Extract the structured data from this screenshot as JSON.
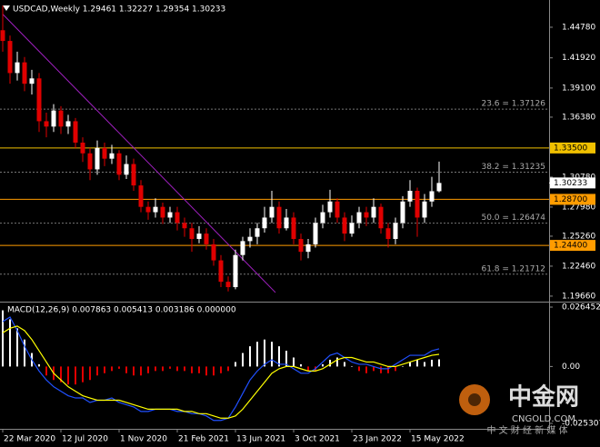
{
  "chart_data": [
    {
      "type": "candlestick",
      "title": "USDCAD,Weekly 1.29461 1.32227 1.29354 1.30233",
      "categories": [
        "22 Mar 2020",
        null,
        null,
        null,
        null,
        null,
        null,
        null,
        "12 Jul 2020",
        null,
        null,
        null,
        null,
        null,
        null,
        null,
        "1 Nov 2020",
        null,
        null,
        null,
        null,
        null,
        null,
        null,
        "21 Feb 2021",
        null,
        null,
        null,
        null,
        null,
        null,
        null,
        "13 Jun 2021",
        null,
        null,
        null,
        null,
        null,
        null,
        null,
        "3 Oct 2021",
        null,
        null,
        null,
        null,
        null,
        null,
        null,
        "23 Jan 2022",
        null,
        null,
        null,
        null,
        null,
        null,
        null,
        "15 May 2022",
        null,
        null,
        null,
        null
      ],
      "open": [
        1.445,
        1.435,
        1.405,
        1.415,
        1.395,
        1.4,
        1.36,
        1.355,
        1.37,
        1.355,
        1.36,
        1.34,
        1.33,
        1.315,
        1.335,
        1.325,
        1.33,
        1.31,
        1.32,
        1.3,
        1.28,
        1.275,
        1.28,
        1.27,
        1.275,
        1.265,
        1.26,
        1.25,
        1.255,
        1.245,
        1.23,
        1.21,
        1.205,
        1.235,
        1.248,
        1.252,
        1.26,
        1.27,
        1.28,
        1.26,
        1.27,
        1.25,
        1.238,
        1.245,
        1.265,
        1.275,
        1.285,
        1.27,
        1.255,
        1.265,
        1.275,
        1.27,
        1.28,
        1.26,
        1.25,
        1.265,
        1.285,
        1.295,
        1.27,
        1.285,
        1.29461
      ],
      "high": [
        1.468,
        1.44,
        1.425,
        1.42,
        1.408,
        1.405,
        1.368,
        1.376,
        1.374,
        1.366,
        1.363,
        1.345,
        1.335,
        1.342,
        1.34,
        1.338,
        1.333,
        1.328,
        1.325,
        1.305,
        1.285,
        1.288,
        1.284,
        1.28,
        1.28,
        1.27,
        1.265,
        1.262,
        1.26,
        1.25,
        1.235,
        1.215,
        1.24,
        1.252,
        1.26,
        1.265,
        1.28,
        1.295,
        1.285,
        1.278,
        1.275,
        1.255,
        1.25,
        1.27,
        1.282,
        1.296,
        1.288,
        1.275,
        1.272,
        1.28,
        1.28,
        1.288,
        1.283,
        1.265,
        1.27,
        1.29,
        1.305,
        1.298,
        1.292,
        1.308,
        1.32227
      ],
      "low": [
        1.425,
        1.395,
        1.398,
        1.388,
        1.385,
        1.35,
        1.345,
        1.35,
        1.348,
        1.348,
        1.335,
        1.322,
        1.305,
        1.31,
        1.318,
        1.32,
        1.305,
        1.306,
        1.295,
        1.275,
        1.268,
        1.27,
        1.264,
        1.265,
        1.258,
        1.252,
        1.238,
        1.246,
        1.24,
        1.225,
        1.205,
        1.201,
        1.203,
        1.23,
        1.242,
        1.245,
        1.256,
        1.265,
        1.255,
        1.258,
        1.245,
        1.23,
        1.232,
        1.242,
        1.26,
        1.27,
        1.265,
        1.248,
        1.252,
        1.26,
        1.262,
        1.265,
        1.255,
        1.242,
        1.245,
        1.26,
        1.28,
        1.252,
        1.265,
        1.28,
        1.29354
      ],
      "close": [
        1.435,
        1.405,
        1.415,
        1.395,
        1.4,
        1.36,
        1.355,
        1.37,
        1.355,
        1.36,
        1.34,
        1.33,
        1.315,
        1.335,
        1.325,
        1.33,
        1.31,
        1.32,
        1.3,
        1.28,
        1.275,
        1.28,
        1.27,
        1.275,
        1.265,
        1.26,
        1.25,
        1.255,
        1.245,
        1.23,
        1.21,
        1.205,
        1.235,
        1.248,
        1.252,
        1.26,
        1.27,
        1.28,
        1.26,
        1.27,
        1.25,
        1.238,
        1.245,
        1.265,
        1.275,
        1.285,
        1.27,
        1.255,
        1.265,
        1.275,
        1.27,
        1.28,
        1.26,
        1.25,
        1.265,
        1.285,
        1.295,
        1.27,
        1.285,
        1.2946,
        1.30233
      ],
      "up_color": "#ffffff",
      "down_color": "#e00000",
      "ylim": [
        1.1923,
        1.4707
      ],
      "yticks": [
        {
          "value": 1.4478,
          "label": "1.44780"
        },
        {
          "value": 1.4192,
          "label": "1.41920"
        },
        {
          "value": 1.391,
          "label": "1.39100"
        },
        {
          "value": 1.3638,
          "label": "1.36380"
        },
        {
          "value": 1.3078,
          "label": "1.30780"
        },
        {
          "value": 1.2798,
          "label": "1.27980"
        },
        {
          "value": 1.2526,
          "label": "1.25260"
        },
        {
          "value": 1.2246,
          "label": "1.22460"
        },
        {
          "value": 1.1966,
          "label": "1.19660"
        }
      ],
      "levels": [
        {
          "value": 1.335,
          "label": "1.33500",
          "color": "#f0c000"
        },
        {
          "value": 1.287,
          "label": "1.28700",
          "color": "#ff9c00"
        },
        {
          "value": 1.244,
          "label": "1.24400",
          "color": "#ff9c00"
        }
      ],
      "current_price": 1.30233,
      "fibonacci": [
        {
          "value": 1.37126,
          "label": "23.6 = 1.37126"
        },
        {
          "value": 1.31235,
          "label": "38.2 = 1.31235"
        },
        {
          "value": 1.26474,
          "label": "50.0 = 1.26474"
        },
        {
          "value": 1.21712,
          "label": "61.8 = 1.21712"
        }
      ],
      "trendline": {
        "color": "#a020c0",
        "points": [
          [
            0,
            1.46
          ],
          [
            37.5,
            1.2
          ]
        ]
      }
    },
    {
      "type": "macd",
      "title": "MACD(12,26,9) 0.007863 0.005413 0.003186 0.000000",
      "histogram": {
        "color": "#ffffff",
        "down_color": "#e00000",
        "values": [
          0.025,
          0.021,
          0.017,
          0.012,
          0.006,
          0.001,
          -0.004,
          -0.006,
          -0.007,
          -0.008,
          -0.008,
          -0.007,
          -0.006,
          -0.004,
          -0.003,
          -0.002,
          -0.001,
          -0.003,
          -0.004,
          -0.004,
          -0.003,
          -0.002,
          -0.002,
          -0.001,
          -0.002,
          -0.002,
          -0.003,
          -0.003,
          -0.004,
          -0.004,
          -0.003,
          -0.002,
          0.002,
          0.006,
          0.009,
          0.011,
          0.012,
          0.011,
          0.009,
          0.007,
          0.004,
          0.001,
          -0.002,
          -0.002,
          0.001,
          0.003,
          0.004,
          0.002,
          0.0,
          -0.002,
          -0.003,
          -0.002,
          -0.003,
          -0.003,
          -0.002,
          0.0,
          0.002,
          0.003,
          0.002,
          0.003,
          0.003186
        ]
      },
      "macd": {
        "color": "#2050ff",
        "values": [
          0.02,
          0.022,
          0.016,
          0.009,
          0.003,
          -0.002,
          -0.006,
          -0.009,
          -0.011,
          -0.013,
          -0.014,
          -0.014,
          -0.016,
          -0.015,
          -0.015,
          -0.014,
          -0.016,
          -0.017,
          -0.018,
          -0.02,
          -0.02,
          -0.019,
          -0.019,
          -0.019,
          -0.02,
          -0.02,
          -0.021,
          -0.021,
          -0.022,
          -0.024,
          -0.024,
          -0.023,
          -0.018,
          -0.012,
          -0.006,
          -0.002,
          0.001,
          0.003,
          0.001,
          0.001,
          -0.001,
          -0.003,
          -0.003,
          -0.001,
          0.002,
          0.005,
          0.006,
          0.004,
          0.002,
          0.001,
          0.001,
          0.0,
          -0.001,
          -0.001,
          0.001,
          0.003,
          0.005,
          0.005,
          0.005,
          0.007,
          0.007863
        ]
      },
      "signal": {
        "color": "#ffff00",
        "values": [
          0.015,
          0.017,
          0.018,
          0.016,
          0.012,
          0.007,
          0.002,
          -0.003,
          -0.006,
          -0.009,
          -0.011,
          -0.013,
          -0.014,
          -0.015,
          -0.015,
          -0.015,
          -0.015,
          -0.016,
          -0.017,
          -0.018,
          -0.019,
          -0.019,
          -0.019,
          -0.019,
          -0.019,
          -0.02,
          -0.02,
          -0.021,
          -0.021,
          -0.022,
          -0.023,
          -0.023,
          -0.022,
          -0.019,
          -0.015,
          -0.011,
          -0.007,
          -0.003,
          -0.001,
          0.0,
          0.0,
          -0.001,
          -0.002,
          -0.002,
          -0.001,
          0.001,
          0.003,
          0.004,
          0.004,
          0.003,
          0.002,
          0.002,
          0.001,
          0.0,
          0.0,
          0.001,
          0.002,
          0.003,
          0.004,
          0.005,
          0.005413
        ]
      },
      "ylim": [
        -0.02693,
        0.02766
      ],
      "yticks": [
        0.026452,
        {
          "value": 0,
          "label": "0.00"
        },
        -0.025307
      ]
    }
  ],
  "watermark": {
    "name": "中金网",
    "site": "CNGOLD.COM",
    "slogan": "中 文 财 经 新 媒 体"
  }
}
